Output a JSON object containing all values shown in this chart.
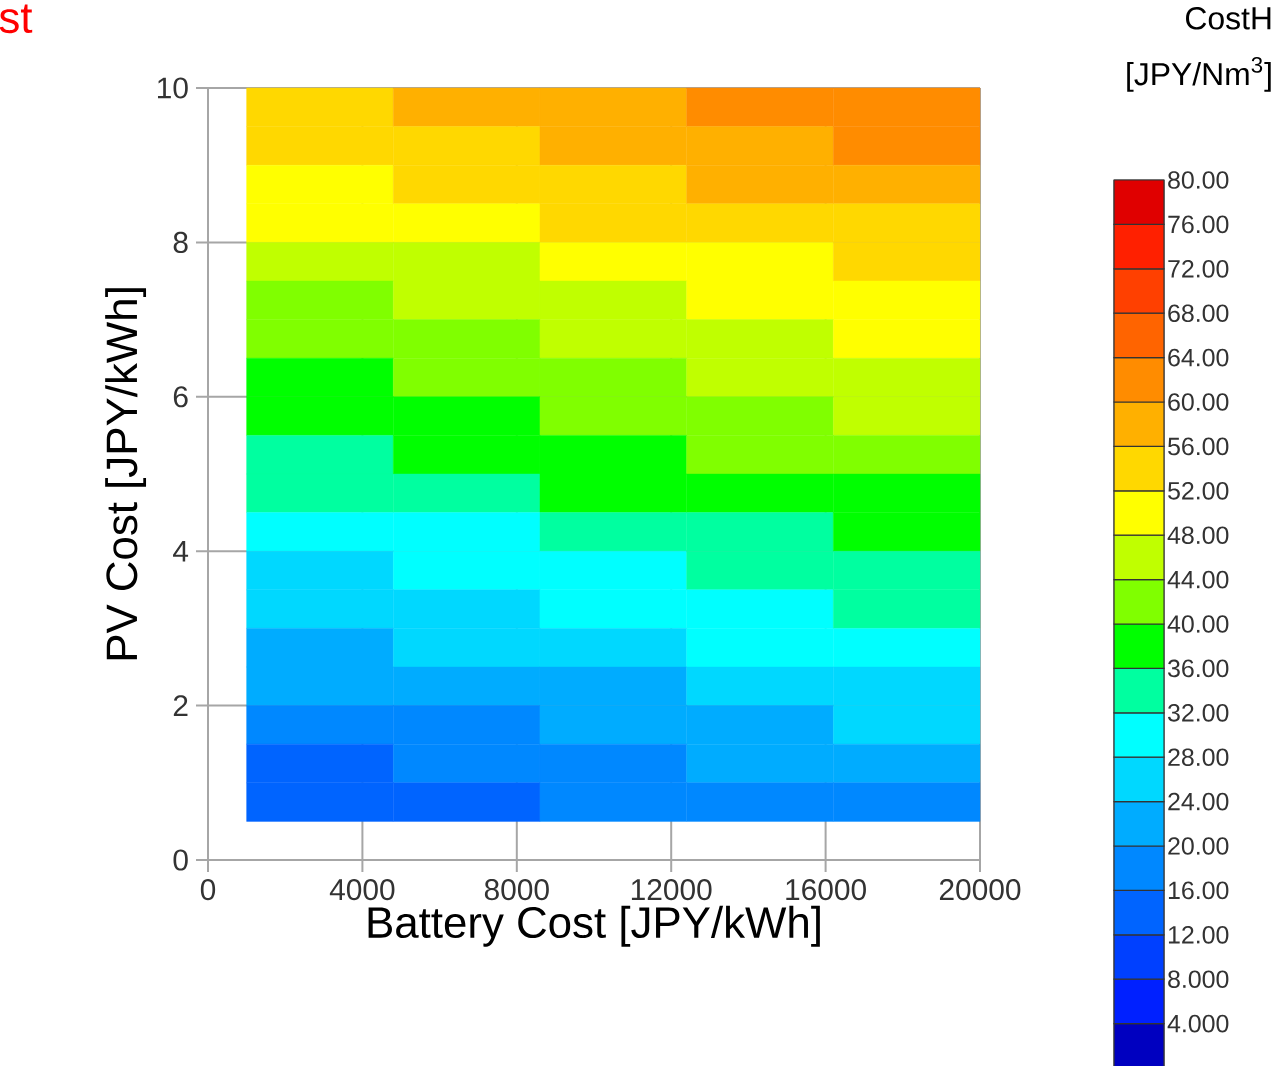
{
  "chart_data": {
    "type": "heatmap",
    "xlabel": "Battery Cost [JPY/kWh]",
    "ylabel": "PV Cost [JPY/kWh]",
    "clabel": "CostH [JPY/Nm$^{3}$]",
    "annotations": [
      "st"
    ],
    "x": [
      2900,
      6700,
      10500,
      14300,
      18100
    ],
    "y": [
      9.75,
      9.25,
      8.75,
      8.25,
      7.75,
      7.25,
      6.75,
      6.25,
      5.75,
      5.25,
      4.75,
      4.25,
      3.75,
      3.25,
      2.75,
      2.25,
      1.75,
      1.25,
      0.75
    ],
    "cells": [
      [
        55,
        57,
        59,
        60,
        62
      ],
      [
        52,
        54,
        56,
        58,
        60
      ],
      [
        50,
        52,
        54,
        56,
        58
      ],
      [
        48,
        50,
        52,
        53,
        55
      ],
      [
        46,
        47,
        49,
        51,
        53
      ],
      [
        43,
        45,
        47,
        49,
        51
      ],
      [
        41,
        43,
        45,
        47,
        48
      ],
      [
        39,
        41,
        42,
        44,
        46
      ],
      [
        37,
        38,
        40,
        42,
        44
      ],
      [
        34,
        36,
        38,
        40,
        41
      ],
      [
        32,
        34,
        36,
        37,
        39
      ],
      [
        30,
        31,
        33,
        35,
        37
      ],
      [
        27,
        29,
        31,
        33,
        34
      ],
      [
        25,
        27,
        28,
        30,
        32
      ],
      [
        22,
        24,
        26,
        28,
        29
      ],
      [
        20,
        22,
        23,
        25,
        27
      ],
      [
        18,
        19,
        21,
        22,
        24
      ],
      [
        15,
        17,
        18,
        20,
        21
      ],
      [
        13,
        14,
        16,
        17,
        19
      ]
    ],
    "colors": [
      "#0000c0",
      "#0020ff",
      "#0040ff",
      "#0064ff",
      "#0088ff",
      "#00acff",
      "#00d8ff",
      "#00ffff",
      "#00ffa0",
      "#00ff00",
      "#80ff00",
      "#c0ff00",
      "#ffff00",
      "#ffd800",
      "#ffb000",
      "#ff8c00",
      "#ff6400",
      "#ff4000",
      "#ff2000",
      "#e00000"
    ],
    "clim": [
      0,
      80
    ],
    "cticks": [
      {
        "value": 4,
        "label": "4.000"
      },
      {
        "value": 8,
        "label": "8.000"
      },
      {
        "value": 12,
        "label": "12.00"
      },
      {
        "value": 16,
        "label": "16.00"
      },
      {
        "value": 20,
        "label": "20.00"
      },
      {
        "value": 24,
        "label": "24.00"
      },
      {
        "value": 28,
        "label": "28.00"
      },
      {
        "value": 32,
        "label": "32.00"
      },
      {
        "value": 36,
        "label": "36.00"
      },
      {
        "value": 40,
        "label": "40.00"
      },
      {
        "value": 44,
        "label": "44.00"
      },
      {
        "value": 48,
        "label": "48.00"
      },
      {
        "value": 52,
        "label": "52.00"
      },
      {
        "value": 56,
        "label": "56.00"
      },
      {
        "value": 60,
        "label": "60.00"
      },
      {
        "value": 64,
        "label": "64.00"
      },
      {
        "value": 68,
        "label": "68.00"
      },
      {
        "value": 72,
        "label": "72.00"
      },
      {
        "value": 76,
        "label": "76.00"
      },
      {
        "value": 80,
        "label": "80.00"
      }
    ],
    "xlim": [
      0,
      20000
    ],
    "ylim": [
      0,
      10
    ],
    "xticks": [
      0,
      4000,
      8000,
      12000,
      16000,
      20000
    ],
    "yticks": [
      0,
      2,
      4,
      6,
      8,
      10
    ],
    "grid": true
  }
}
